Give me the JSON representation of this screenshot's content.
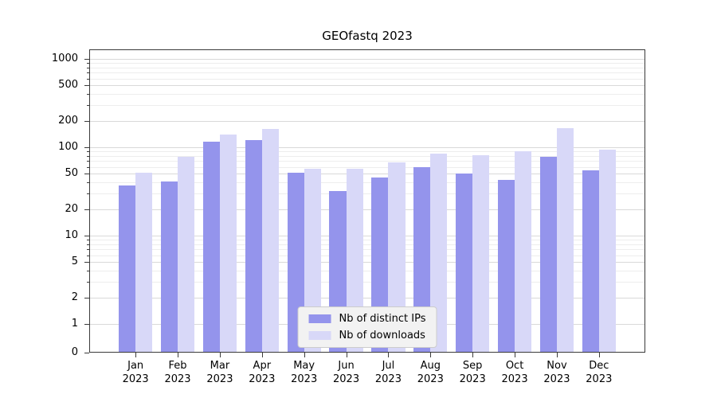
{
  "title": "GEOfastq 2023",
  "chart_data": {
    "type": "bar",
    "title": "GEOfastq 2023",
    "categories": [
      "Jan",
      "Feb",
      "Mar",
      "Apr",
      "May",
      "Jun",
      "Jul",
      "Aug",
      "Sep",
      "Oct",
      "Nov",
      "Dec"
    ],
    "year": "2023",
    "series": [
      {
        "name": "Nb of distinct IPs",
        "color": "#9494ec",
        "values": [
          37,
          41,
          115,
          120,
          51,
          32,
          45,
          59,
          50,
          43,
          78,
          55
        ]
      },
      {
        "name": "Nb of downloads",
        "color": "#d8d8f8",
        "values": [
          52,
          78,
          140,
          160,
          57,
          57,
          67,
          85,
          82,
          90,
          165,
          93
        ]
      }
    ],
    "yticks": [
      0,
      1,
      2,
      5,
      10,
      20,
      50,
      100,
      200,
      500,
      1000
    ],
    "yscale": "symlog",
    "ylim": [
      0,
      1000
    ],
    "xlabel": "",
    "ylabel": "",
    "grid": true,
    "legend_position": "lower center"
  }
}
